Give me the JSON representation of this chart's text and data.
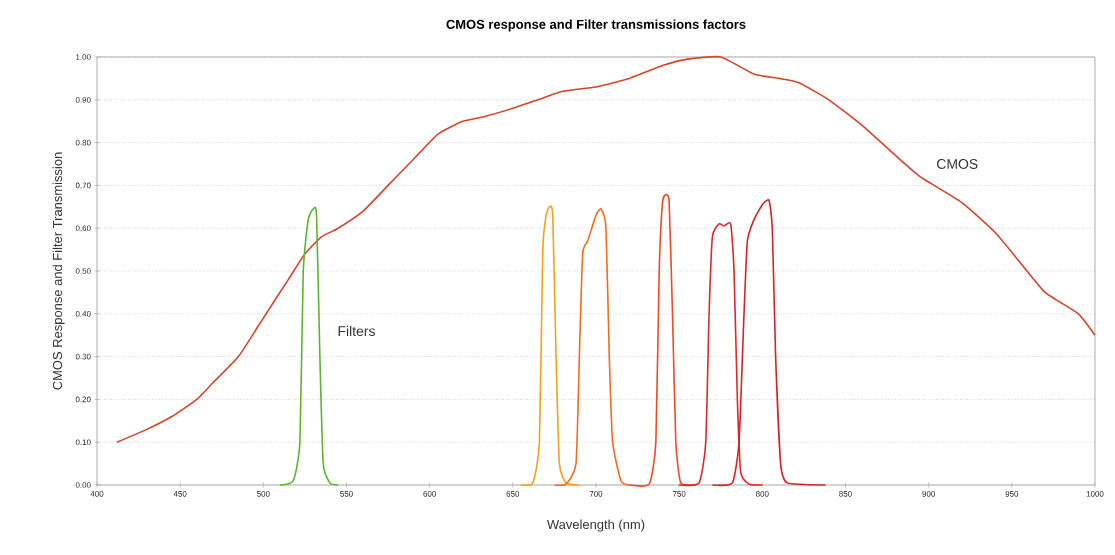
{
  "chart_data": {
    "type": "line",
    "title": "CMOS response and Filter transmissions factors",
    "xlabel": "Wavelength (nm)",
    "ylabel": "CMOS Response and Filter Transmission",
    "xlim": [
      400,
      1000
    ],
    "xticks": [
      400,
      450,
      500,
      550,
      600,
      650,
      700,
      750,
      800,
      850,
      900,
      950,
      1000
    ],
    "ylim": [
      0,
      1
    ],
    "yticks": [
      {
        "value": 0,
        "label": "0.00"
      },
      {
        "value": 0.1,
        "label": "0.10"
      },
      {
        "value": 0.2,
        "label": "0.20"
      },
      {
        "value": 0.3,
        "label": "0.30"
      },
      {
        "value": 0.4,
        "label": "0.40"
      },
      {
        "value": 0.5,
        "label": "0.50"
      },
      {
        "value": 0.6,
        "label": "0.60"
      },
      {
        "value": 0.7,
        "label": "0.70"
      },
      {
        "value": 0.8,
        "label": "0.80"
      },
      {
        "value": 0.9,
        "label": "0.90"
      },
      {
        "value": 1,
        "label": "1.00"
      }
    ],
    "grid": "y",
    "annotations": [
      "Filters",
      "CMOS"
    ],
    "series": [
      {
        "color": "#d2452b",
        "x": [
          412,
          430,
          445,
          460,
          470,
          485,
          500,
          515,
          525,
          535,
          545,
          560,
          575,
          590,
          605,
          620,
          632,
          650,
          665,
          680,
          700,
          720,
          740,
          755,
          775,
          795,
          810,
          822,
          840,
          860,
          880,
          895,
          920,
          940,
          955,
          970,
          990,
          1000
        ],
        "values": [
          0.1,
          0.13,
          0.16,
          0.2,
          0.24,
          0.3,
          0.39,
          0.48,
          0.54,
          0.58,
          0.6,
          0.64,
          0.7,
          0.76,
          0.82,
          0.85,
          0.86,
          0.88,
          0.9,
          0.92,
          0.93,
          0.95,
          0.98,
          0.995,
          1.0,
          0.96,
          0.95,
          0.94,
          0.9,
          0.84,
          0.77,
          0.72,
          0.66,
          0.59,
          0.52,
          0.45,
          0.4,
          0.35
        ]
      },
      {
        "color": "#5ab52e",
        "x": [
          510,
          518,
          522,
          524,
          527,
          530,
          532,
          534,
          536,
          540,
          545
        ],
        "values": [
          0,
          0.01,
          0.1,
          0.5,
          0.62,
          0.645,
          0.63,
          0.3,
          0.05,
          0.005,
          0
        ]
      },
      {
        "color": "#f5a01a",
        "x": [
          655,
          662,
          666,
          668,
          670,
          672,
          674,
          676,
          678,
          682,
          690
        ],
        "values": [
          0,
          0.005,
          0.1,
          0.55,
          0.63,
          0.65,
          0.63,
          0.3,
          0.05,
          0.005,
          0
        ]
      },
      {
        "color": "#f06c1e",
        "x": [
          675,
          682,
          688,
          690,
          692,
          695,
          700,
          703,
          706,
          708,
          710,
          715,
          720
        ],
        "values": [
          0,
          0.002,
          0.05,
          0.3,
          0.54,
          0.57,
          0.63,
          0.645,
          0.6,
          0.3,
          0.1,
          0.01,
          0
        ]
      },
      {
        "color": "#ef4a24",
        "x": [
          720,
          732,
          736,
          738,
          740,
          742,
          744,
          746,
          748,
          751,
          760
        ],
        "values": [
          0,
          0.002,
          0.1,
          0.5,
          0.66,
          0.678,
          0.66,
          0.4,
          0.1,
          0.005,
          0
        ]
      },
      {
        "color": "#e0262a",
        "x": [
          750,
          762,
          766,
          768,
          770,
          774,
          777,
          781,
          783,
          785,
          787,
          792,
          800
        ],
        "values": [
          0,
          0.005,
          0.1,
          0.4,
          0.58,
          0.61,
          0.605,
          0.61,
          0.5,
          0.2,
          0.03,
          0.002,
          0
        ]
      },
      {
        "color": "#d92028",
        "x": [
          770,
          782,
          786,
          789,
          791,
          795,
          800,
          804,
          806,
          808,
          811,
          815,
          838
        ],
        "values": [
          0,
          0.005,
          0.1,
          0.4,
          0.57,
          0.62,
          0.655,
          0.665,
          0.6,
          0.3,
          0.05,
          0.005,
          0
        ]
      }
    ]
  }
}
